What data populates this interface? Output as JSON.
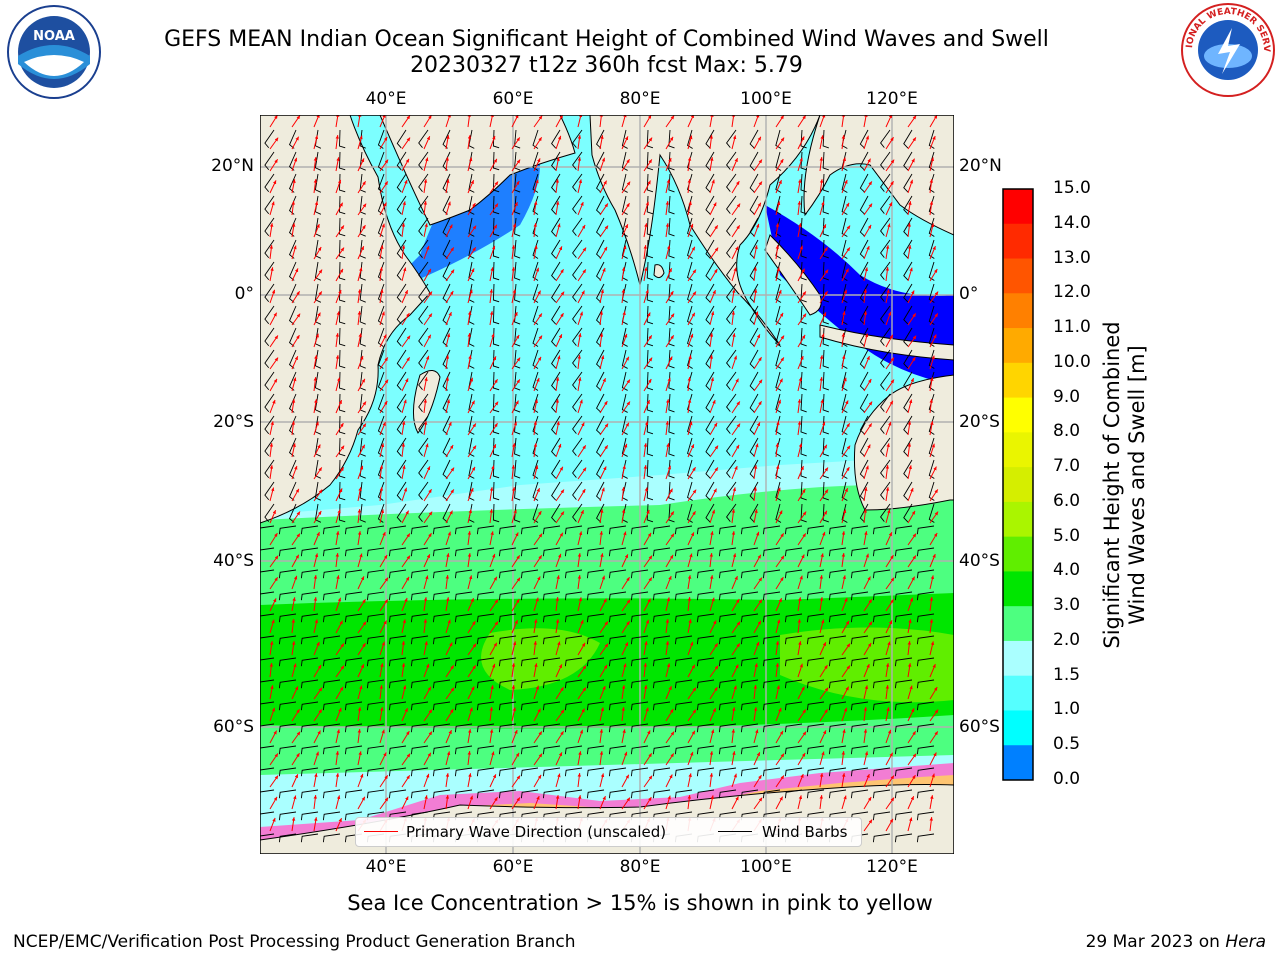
{
  "title": {
    "line1": "GEFS MEAN Indian Ocean Significant Height of Combined Wind Waves and Swell",
    "line2": "20230327 t12z 360h fcst   Max: 5.79"
  },
  "map": {
    "lon_labels": [
      "40°E",
      "60°E",
      "80°E",
      "100°E",
      "120°E"
    ],
    "lat_labels": [
      "20°N",
      "0°",
      "20°S",
      "40°S",
      "60°S"
    ],
    "lon_range": [
      20,
      129
    ],
    "lat_range": [
      -73,
      28
    ],
    "land_color": "#efecdd",
    "sea_ice_colors": [
      "#ff66cc",
      "#ffcc66",
      "#ffe066"
    ]
  },
  "colorbar": {
    "ticks": [
      "15.0",
      "14.0",
      "13.0",
      "12.0",
      "11.0",
      "10.0",
      "9.0",
      "8.0",
      "7.0",
      "6.0",
      "5.0",
      "4.0",
      "3.0",
      "2.0",
      "1.5",
      "1.0",
      "0.5",
      "0.0"
    ],
    "colors": [
      "#ff0000",
      "#ff2a00",
      "#ff5500",
      "#ff8000",
      "#ffaa00",
      "#ffd500",
      "#ffff00",
      "#eaf500",
      "#d5ee00",
      "#aaf500",
      "#60ee00",
      "#00e600",
      "#4dff80",
      "#aaffff",
      "#55ffff",
      "#00ffff",
      "#0080ff",
      "#0000ff"
    ],
    "label_line1": "Significant Height of Combined",
    "label_line2": "Wind Waves and Swell [m]"
  },
  "legend": {
    "wave_label": "Primary Wave Direction (unscaled)",
    "wave_color": "#ff0000",
    "barb_label": "Wind Barbs",
    "barb_color": "#000000"
  },
  "caption": "Sea Ice Concentration > 15% is shown in pink to yellow",
  "footer": {
    "left": "NCEP/EMC/Verification Post Processing Product Generation Branch",
    "date": "29 Mar 2023 on ",
    "host": "Hera"
  },
  "logos": {
    "noaa_text": "NOAA",
    "nws_text": "NATIONAL WEATHER SERVICE"
  }
}
